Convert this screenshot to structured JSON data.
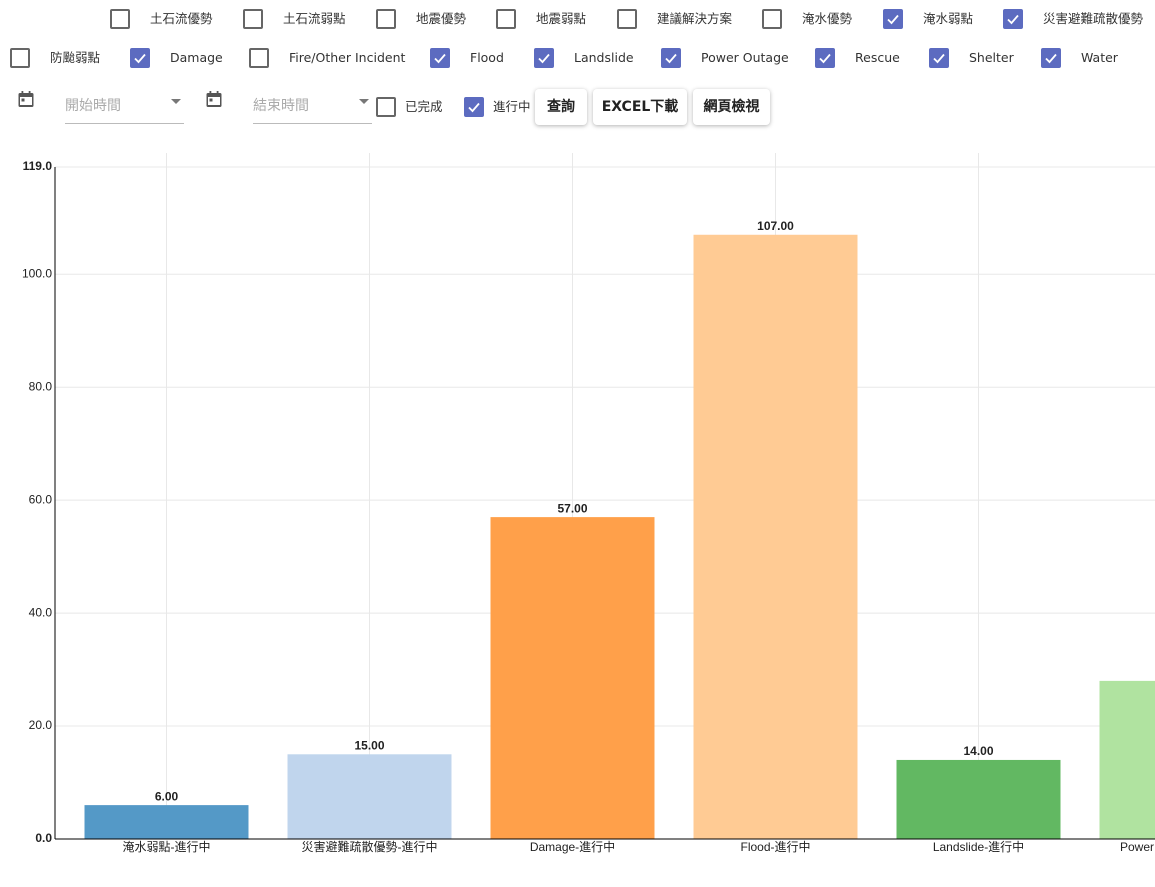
{
  "filters": [
    {
      "label": "土石流優勢",
      "checked": false
    },
    {
      "label": "土石流弱點",
      "checked": false
    },
    {
      "label": "地震優勢",
      "checked": false
    },
    {
      "label": "地震弱點",
      "checked": false
    },
    {
      "label": "建議解決方案",
      "checked": false
    },
    {
      "label": "淹水優勢",
      "checked": false
    },
    {
      "label": "淹水弱點",
      "checked": true
    },
    {
      "label": "災害避難疏散優勢",
      "checked": true
    },
    {
      "label": "防颱弱點",
      "checked": false
    },
    {
      "label": "Damage",
      "checked": true
    },
    {
      "label": "Fire/Other Incident",
      "checked": false
    },
    {
      "label": "Flood",
      "checked": true
    },
    {
      "label": "Landslide",
      "checked": true
    },
    {
      "label": "Power Outage",
      "checked": true
    },
    {
      "label": "Rescue",
      "checked": true
    },
    {
      "label": "Shelter",
      "checked": true
    },
    {
      "label": "Water",
      "checked": true
    }
  ],
  "date_range": {
    "start_placeholder": "開始時間",
    "end_placeholder": "結束時間"
  },
  "status": [
    {
      "label": "已完成",
      "checked": false
    },
    {
      "label": "進行中",
      "checked": true
    }
  ],
  "buttons": [
    "查詢",
    "EXCEL下載",
    "網頁檢視"
  ],
  "chart_data": {
    "type": "bar",
    "categories": [
      "淹水弱點-進行中",
      "災害避難疏散優勢-進行中",
      "Damage-進行中",
      "Flood-進行中",
      "Landslide-進行中",
      "Power"
    ],
    "values": [
      6,
      15,
      57,
      107,
      14,
      28
    ],
    "value_labels": [
      "6.00",
      "15.00",
      "57.00",
      "107.00",
      "14.00",
      null
    ],
    "colors": [
      "#5499c7",
      "#c0d5ed",
      "#ffa04a",
      "#ffcb94",
      "#62b862",
      "#b0e3a0"
    ],
    "ylim": [
      0,
      119
    ],
    "yticks": [
      {
        "value": 0,
        "label": "0.0"
      },
      {
        "value": 20,
        "label": "20.0"
      },
      {
        "value": 40,
        "label": "40.0"
      },
      {
        "value": 60,
        "label": "60.0"
      },
      {
        "value": 80,
        "label": "80.0"
      },
      {
        "value": 100,
        "label": "100.0"
      },
      {
        "value": 119,
        "label": "119.0"
      }
    ],
    "grid": true
  }
}
